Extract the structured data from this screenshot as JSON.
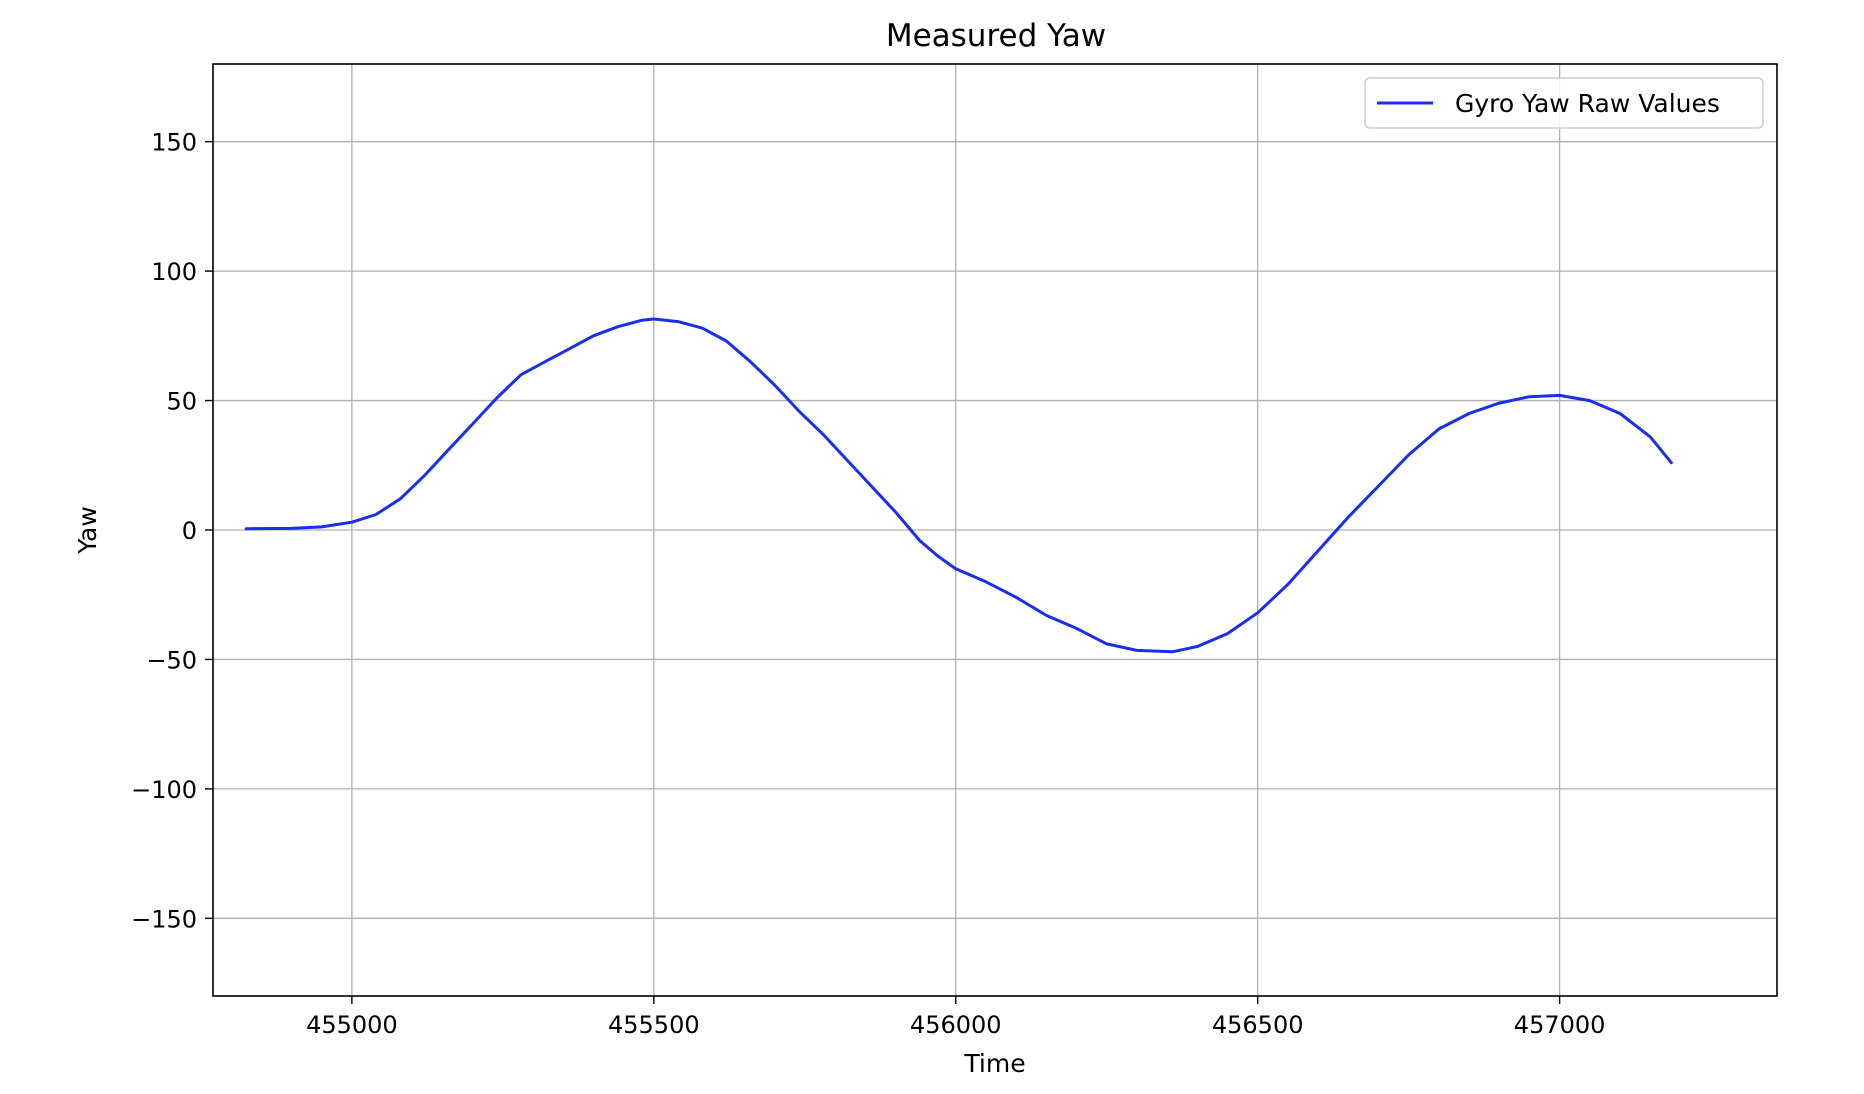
{
  "chart_data": {
    "type": "line",
    "title": "Measured Yaw",
    "xlabel": "Time",
    "ylabel": "Yaw",
    "xlim": [
      454770,
      457360
    ],
    "ylim": [
      -180,
      180
    ],
    "x_ticks": [
      455000,
      455500,
      456000,
      456500,
      457000
    ],
    "y_ticks": [
      -150,
      -100,
      -50,
      0,
      50,
      100,
      150
    ],
    "x_tick_labels": [
      "455000",
      "455500",
      "456000",
      "456500",
      "457000"
    ],
    "y_tick_labels": [
      "−150",
      "−100",
      "−50",
      "0",
      "50",
      "100",
      "150"
    ],
    "grid": true,
    "legend_position": "top-right",
    "series": [
      {
        "name": "Gyro Yaw Raw Values",
        "color": "#1a2eee",
        "points": [
          [
            454825,
            0.5
          ],
          [
            454900,
            0.6
          ],
          [
            454950,
            1.2
          ],
          [
            455000,
            3
          ],
          [
            455040,
            6
          ],
          [
            455080,
            12
          ],
          [
            455120,
            21
          ],
          [
            455160,
            31
          ],
          [
            455200,
            41
          ],
          [
            455240,
            51
          ],
          [
            455280,
            60
          ],
          [
            455320,
            65
          ],
          [
            455360,
            70
          ],
          [
            455400,
            75
          ],
          [
            455440,
            78.5
          ],
          [
            455480,
            81
          ],
          [
            455500,
            81.5
          ],
          [
            455540,
            80.5
          ],
          [
            455580,
            78
          ],
          [
            455620,
            73
          ],
          [
            455660,
            65
          ],
          [
            455700,
            56
          ],
          [
            455740,
            46
          ],
          [
            455780,
            37
          ],
          [
            455820,
            27
          ],
          [
            455860,
            17
          ],
          [
            455900,
            7
          ],
          [
            455940,
            -4
          ],
          [
            455970,
            -10
          ],
          [
            456000,
            -15
          ],
          [
            456050,
            -20
          ],
          [
            456100,
            -26
          ],
          [
            456150,
            -33
          ],
          [
            456200,
            -38
          ],
          [
            456250,
            -44
          ],
          [
            456300,
            -46.5
          ],
          [
            456360,
            -47
          ],
          [
            456400,
            -45
          ],
          [
            456450,
            -40
          ],
          [
            456500,
            -32
          ],
          [
            456550,
            -21
          ],
          [
            456600,
            -8
          ],
          [
            456650,
            5
          ],
          [
            456700,
            17
          ],
          [
            456750,
            29
          ],
          [
            456800,
            39
          ],
          [
            456850,
            45
          ],
          [
            456900,
            49
          ],
          [
            456950,
            51.5
          ],
          [
            457000,
            52
          ],
          [
            457050,
            50
          ],
          [
            457100,
            45
          ],
          [
            457150,
            36
          ],
          [
            457185,
            26
          ]
        ]
      }
    ]
  }
}
